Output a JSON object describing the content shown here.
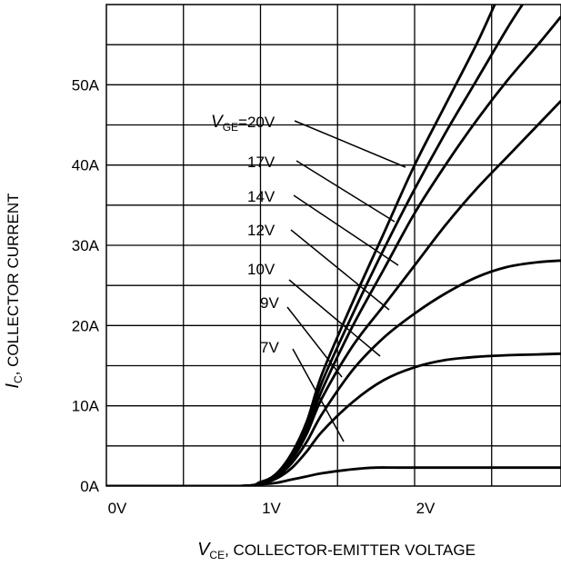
{
  "chart_data": {
    "type": "line",
    "title": "",
    "xlabel": {
      "symbol": "V",
      "sub": "CE",
      "text": ", COLLECTOR-EMITTER VOLTAGE"
    },
    "ylabel": {
      "symbol": "I",
      "sub": "C",
      "text": ", COLLECTOR CURRENT"
    },
    "xlim": [
      0,
      2.95
    ],
    "ylim": [
      0,
      60
    ],
    "x_ticks": [
      {
        "value": 0,
        "label": "0V"
      },
      {
        "value": 1,
        "label": "1V"
      },
      {
        "value": 2,
        "label": "2V"
      }
    ],
    "y_ticks": [
      {
        "value": 0,
        "label": "0A"
      },
      {
        "value": 10,
        "label": "10A"
      },
      {
        "value": 20,
        "label": "20A"
      },
      {
        "value": 30,
        "label": "30A"
      },
      {
        "value": 40,
        "label": "40A"
      },
      {
        "value": 50,
        "label": "50A"
      }
    ],
    "x_gridlines": [
      0.5,
      1.0,
      1.5,
      2.0,
      2.5
    ],
    "y_gridlines": [
      5,
      10,
      15,
      20,
      25,
      30,
      35,
      40,
      45,
      50,
      55
    ],
    "grid": true,
    "series": [
      {
        "name": "VGE=20V",
        "label": {
          "symbol": "V",
          "sub": "GE",
          "text": "=20V"
        },
        "x": [
          0,
          0.85,
          1.0,
          1.1,
          1.2,
          1.3,
          1.4,
          1.6,
          1.8,
          2.0,
          2.2,
          2.4,
          2.52
        ],
        "y": [
          0,
          0,
          0.5,
          1.5,
          4,
          8,
          14,
          23,
          31.5,
          40,
          47.5,
          55,
          60
        ]
      },
      {
        "name": "17V",
        "label": {
          "symbol": "",
          "sub": "",
          "text": "17V"
        },
        "x": [
          0,
          0.85,
          1.0,
          1.1,
          1.2,
          1.3,
          1.4,
          1.6,
          1.8,
          2.0,
          2.2,
          2.4,
          2.6,
          2.7
        ],
        "y": [
          0,
          0,
          0.5,
          1.4,
          3.8,
          7.5,
          13,
          21.5,
          29.5,
          37,
          44,
          50.5,
          57,
          60
        ]
      },
      {
        "name": "14V",
        "label": {
          "symbol": "",
          "sub": "",
          "text": "14V"
        },
        "x": [
          0,
          0.85,
          1.0,
          1.1,
          1.2,
          1.3,
          1.4,
          1.6,
          1.8,
          2.0,
          2.2,
          2.4,
          2.6,
          2.8,
          2.95
        ],
        "y": [
          0,
          0,
          0.5,
          1.3,
          3.5,
          7,
          12,
          20,
          27,
          34,
          40,
          45.5,
          50.5,
          55,
          58.5
        ]
      },
      {
        "name": "12V",
        "label": {
          "symbol": "",
          "sub": "",
          "text": "12V"
        },
        "x": [
          0,
          0.85,
          1.0,
          1.1,
          1.2,
          1.3,
          1.4,
          1.6,
          1.8,
          2.0,
          2.2,
          2.4,
          2.6,
          2.8,
          2.95
        ],
        "y": [
          0,
          0,
          0.4,
          1.2,
          3.2,
          6.5,
          11,
          17.5,
          22.5,
          27.5,
          32.5,
          37,
          41,
          45,
          48
        ]
      },
      {
        "name": "10V",
        "label": {
          "symbol": "",
          "sub": "",
          "text": "10V"
        },
        "x": [
          0,
          0.85,
          1.0,
          1.1,
          1.2,
          1.3,
          1.4,
          1.6,
          1.8,
          2.0,
          2.2,
          2.4,
          2.6,
          2.8,
          2.95
        ],
        "y": [
          0,
          0,
          0.4,
          1.1,
          2.8,
          5.5,
          9,
          14.5,
          18.5,
          21.5,
          24,
          26,
          27.3,
          27.9,
          28.1
        ]
      },
      {
        "name": "9V",
        "label": {
          "symbol": "",
          "sub": "",
          "text": "9V"
        },
        "x": [
          0,
          0.85,
          1.0,
          1.1,
          1.2,
          1.3,
          1.4,
          1.6,
          1.8,
          2.0,
          2.2,
          2.4,
          2.6,
          2.8,
          2.95
        ],
        "y": [
          0,
          0,
          0.3,
          0.9,
          2.2,
          4.3,
          6.8,
          10.5,
          13.2,
          14.8,
          15.7,
          16.1,
          16.3,
          16.4,
          16.5
        ]
      },
      {
        "name": "7V",
        "label": {
          "symbol": "",
          "sub": "",
          "text": "7V"
        },
        "x": [
          0,
          0.85,
          1.0,
          1.1,
          1.2,
          1.3,
          1.4,
          1.6,
          1.75,
          1.9,
          2.2,
          2.6,
          2.95
        ],
        "y": [
          0,
          0,
          0.2,
          0.4,
          0.8,
          1.2,
          1.6,
          2.1,
          2.3,
          2.3,
          2.3,
          2.3,
          2.3
        ]
      }
    ]
  }
}
